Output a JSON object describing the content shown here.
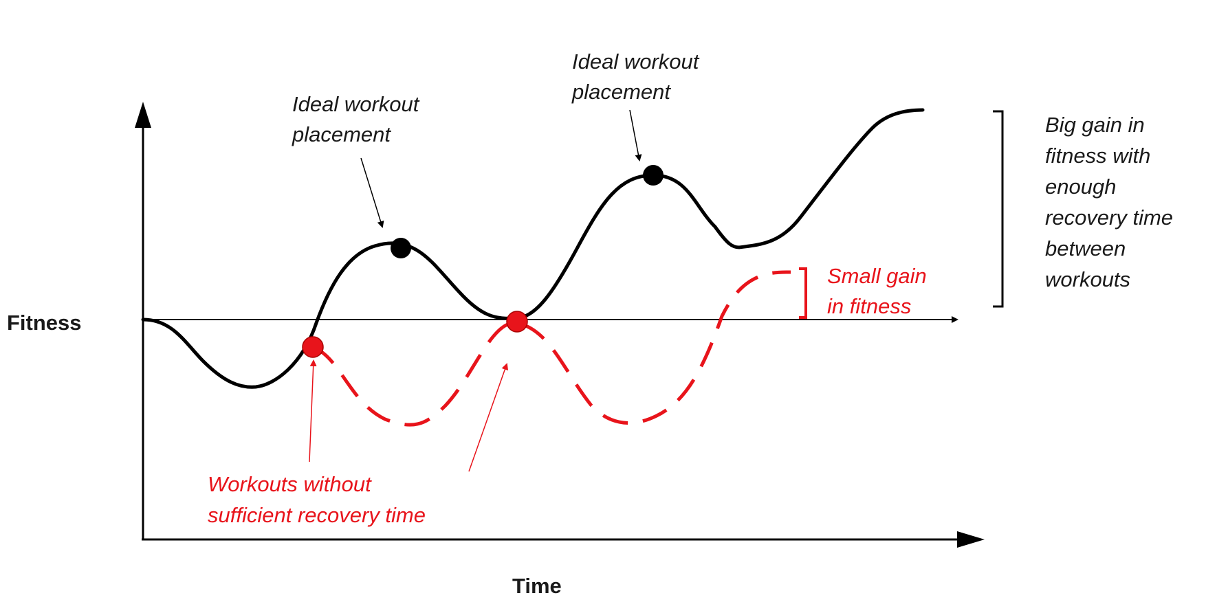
{
  "axes": {
    "y_label": "Fitness",
    "x_label": "Time"
  },
  "annotations": {
    "ideal_1": [
      "Ideal workout",
      "placement"
    ],
    "ideal_2": [
      "Ideal workout",
      "placement"
    ],
    "insufficient": [
      "Workouts without",
      "sufficient recovery time"
    ],
    "small_gain": [
      "Small gain",
      "in fitness"
    ],
    "big_gain": [
      "Big gain in",
      "fitness with",
      "enough",
      "recovery time",
      "between",
      "workouts"
    ]
  },
  "colors": {
    "ideal_curve": "#000000",
    "insufficient_curve": "#e8141b",
    "text_black": "#1a1a1a",
    "text_red": "#e8141b"
  }
}
